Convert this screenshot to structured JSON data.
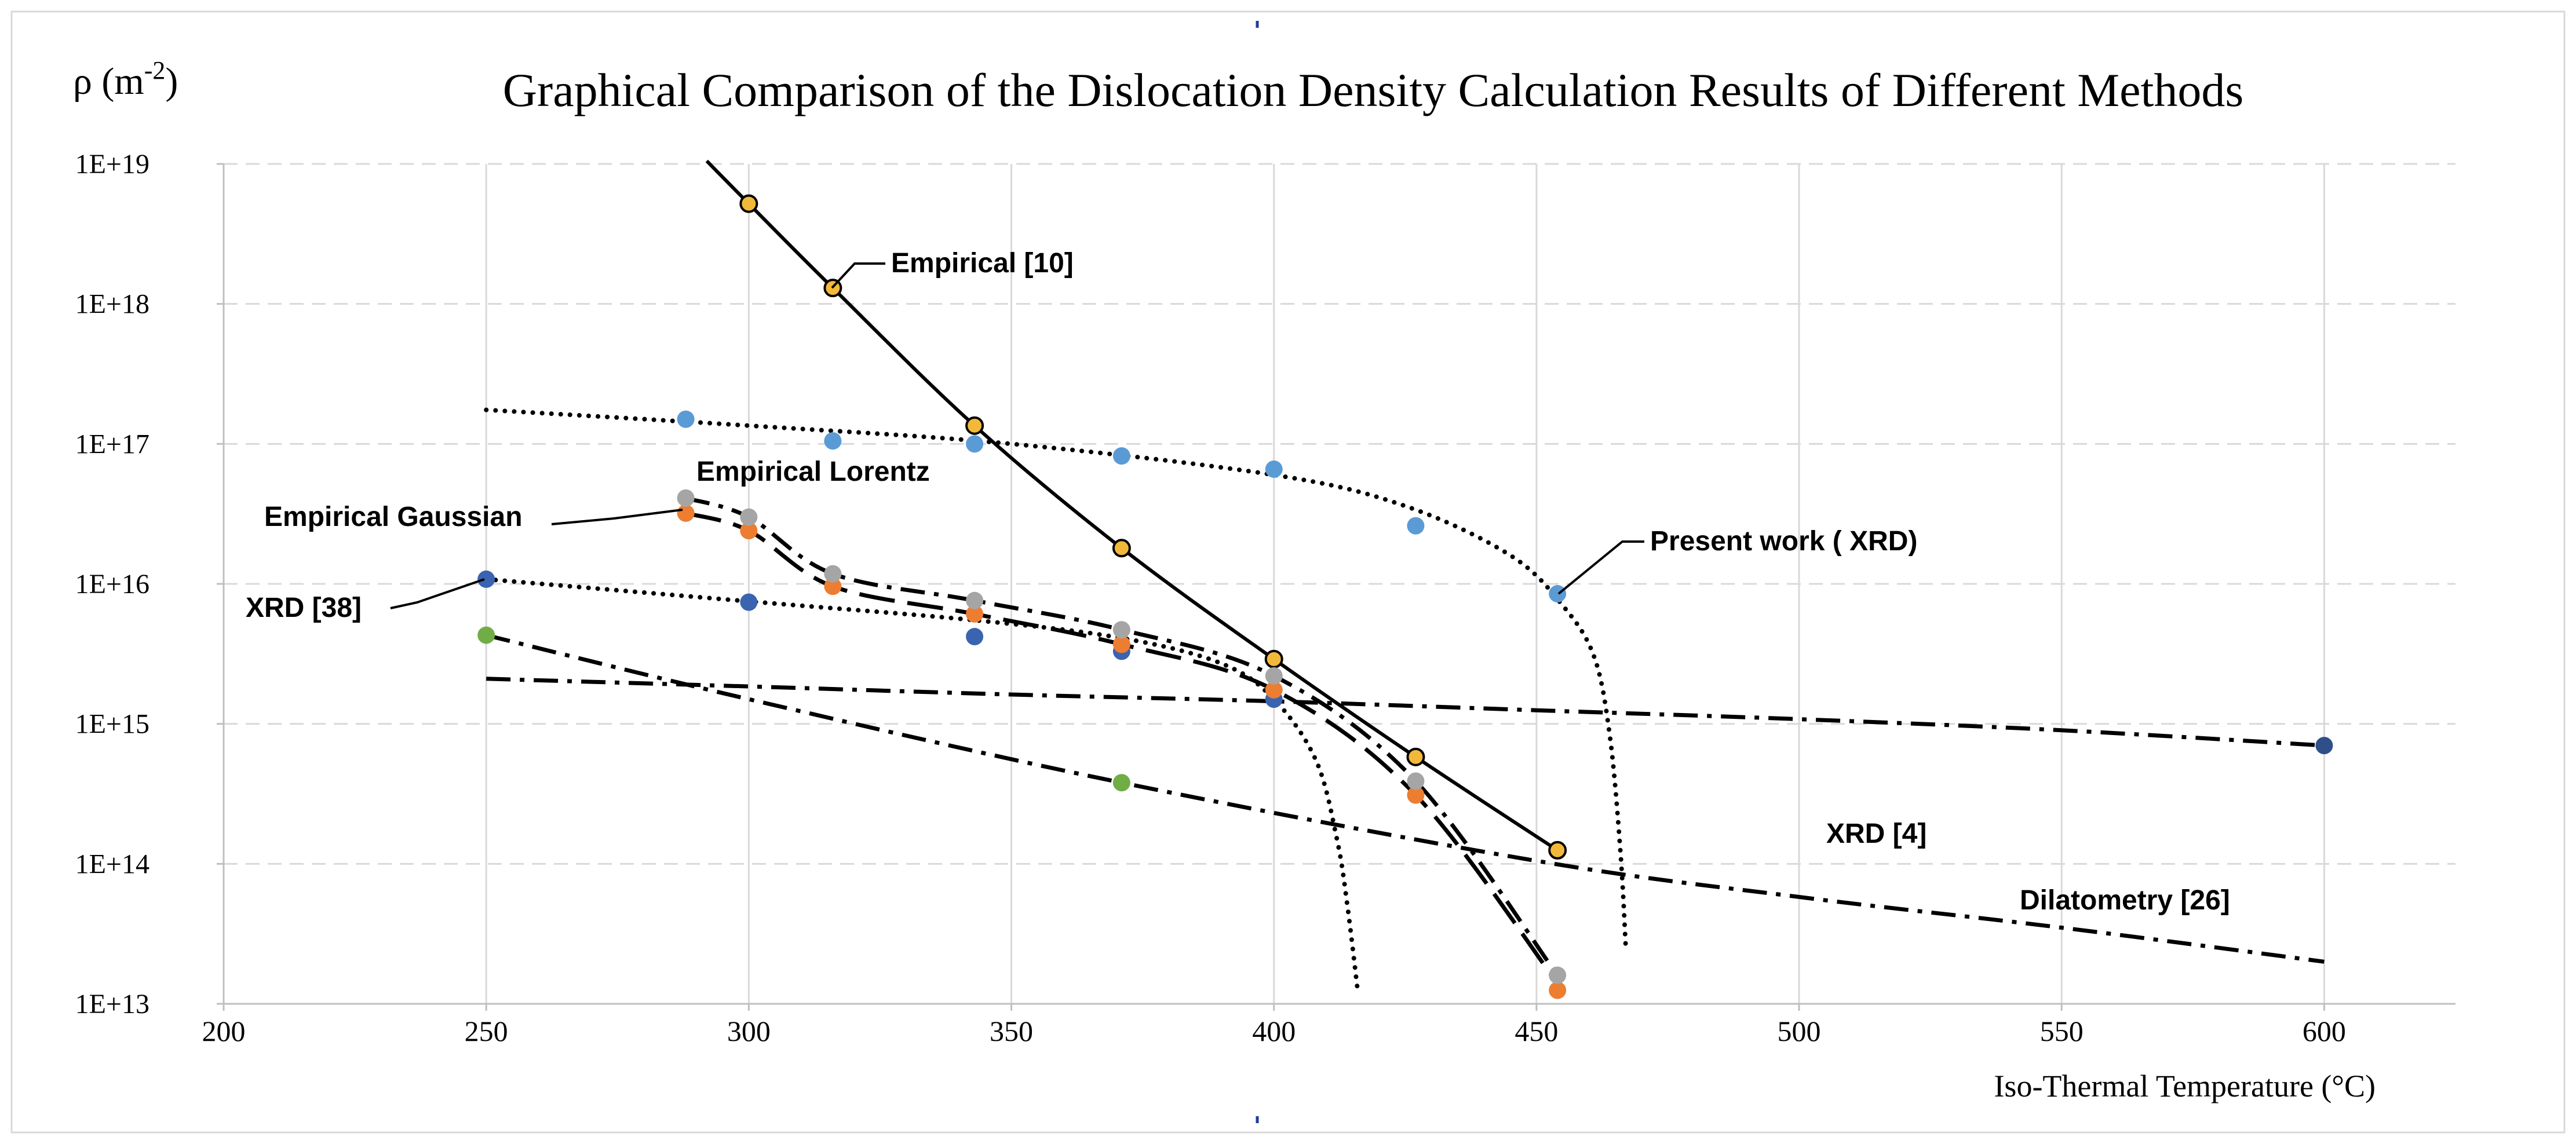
{
  "chart_data": {
    "type": "line",
    "title": "Graphical Comparison of the Dislocation Density Calculation Results of Different Methods",
    "ylabel": "ρ (m",
    "ylabel_sup": "-2",
    "ylabel_close": ")",
    "xlabel": "Iso-Thermal Temperature (°C)",
    "xlim": [
      200,
      625
    ],
    "x_ticks": [
      200,
      250,
      300,
      350,
      400,
      450,
      500,
      550,
      600
    ],
    "y_scale": "log",
    "ylim": [
      10000000000000.0,
      1e+19
    ],
    "y_ticks": [
      {
        "value": 10000000000000.0,
        "label": "1E+13"
      },
      {
        "value": 100000000000000.0,
        "label": "1E+14"
      },
      {
        "value": 1000000000000000.0,
        "label": "1E+15"
      },
      {
        "value": 1e+16,
        "label": "1E+16"
      },
      {
        "value": 1e+17,
        "label": "1E+17"
      },
      {
        "value": 1e+18,
        "label": "1E+18"
      },
      {
        "value": 1e+19,
        "label": "1E+19"
      }
    ],
    "grid": {
      "vertical": "solid",
      "horizontal": "dashed"
    },
    "colors": {
      "empirical10": "#f2b83a",
      "present": "#5b9bd5",
      "xrd38": "#3a63b0",
      "gaussian": "#ed7d31",
      "lorentz": "#a5a5a5",
      "xrd4": "#2e4f8a",
      "dilatometry": "#70ad47",
      "line": "#000000",
      "grid": "#d9d9d9",
      "axis": "#bfbfbf"
    },
    "series": [
      {
        "name": "Empirical [10]",
        "marker_color": "#f2b83a",
        "marker_edge": "#000000",
        "line_style": "solid",
        "points": [
          [
            300,
            5.2e+18
          ],
          [
            316,
            1.3e+18
          ],
          [
            343,
            1.35e+17
          ],
          [
            371,
            1.8e+16
          ],
          [
            400,
            2900000000000000.0
          ],
          [
            427,
            580000000000000.0
          ],
          [
            454,
            125000000000000.0
          ]
        ],
        "trend": [
          [
            292,
            1.05e+19
          ],
          [
            300,
            5.2e+18
          ],
          [
            316,
            1.3e+18
          ],
          [
            343,
            1.35e+17
          ],
          [
            371,
            1.8e+16
          ],
          [
            400,
            2900000000000000.0
          ],
          [
            427,
            580000000000000.0
          ],
          [
            454,
            125000000000000.0
          ]
        ]
      },
      {
        "name": "Present work ( XRD)",
        "marker_color": "#5b9bd5",
        "line_style": "dotted",
        "points": [
          [
            288,
            1.5e+17
          ],
          [
            316,
            1.05e+17
          ],
          [
            343,
            1e+17
          ],
          [
            371,
            8.2e+16
          ],
          [
            400,
            6.6e+16
          ],
          [
            427,
            2.6e+16
          ],
          [
            454,
            8500000000000000.0
          ]
        ],
        "trend": [
          [
            250,
            1.75e+17
          ],
          [
            300,
            1.35e+17
          ],
          [
            350,
            1e+17
          ],
          [
            400,
            6e+16
          ],
          [
            425,
            3.6e+16
          ],
          [
            445,
            1.6e+16
          ],
          [
            455,
            7000000000000000.0
          ],
          [
            461,
            3000000000000000.0
          ],
          [
            464,
            800000000000000.0
          ],
          [
            466,
            120000000000000.0
          ],
          [
            467,
            25000000000000.0
          ]
        ]
      },
      {
        "name": "XRD [38]",
        "marker_color": "#3a63b0",
        "line_style": "dotted",
        "points": [
          [
            250,
            1.08e+16
          ],
          [
            300,
            7400000000000000.0
          ],
          [
            343,
            4200000000000000.0
          ],
          [
            371,
            3300000000000000.0
          ],
          [
            400,
            1500000000000000.0
          ]
        ],
        "trend": [
          [
            250,
            1.08e+16
          ],
          [
            300,
            7500000000000000.0
          ],
          [
            343,
            5500000000000000.0
          ],
          [
            371,
            4100000000000000.0
          ],
          [
            390,
            2700000000000000.0
          ],
          [
            400,
            1500000000000000.0
          ],
          [
            408,
            550000000000000.0
          ],
          [
            412,
            150000000000000.0
          ],
          [
            414,
            50000000000000.0
          ],
          [
            416,
            12000000000000.0
          ]
        ]
      },
      {
        "name": "Empirical Gaussian",
        "marker_color": "#ed7d31",
        "line_style": "long-dash",
        "points": [
          [
            288,
            3.2e+16
          ],
          [
            300,
            2.4e+16
          ],
          [
            316,
            9600000000000000.0
          ],
          [
            343,
            6100000000000000.0
          ],
          [
            371,
            3700000000000000.0
          ],
          [
            400,
            1750000000000000.0
          ],
          [
            427,
            310000000000000.0
          ],
          [
            454,
            12500000000000.0
          ]
        ],
        "trend": [
          [
            288,
            3.2e+16
          ],
          [
            300,
            2.4e+16
          ],
          [
            316,
            9600000000000000.0
          ],
          [
            343,
            6100000000000000.0
          ],
          [
            371,
            3700000000000000.0
          ],
          [
            400,
            1750000000000000.0
          ],
          [
            427,
            310000000000000.0
          ],
          [
            454,
            14000000000000.0
          ]
        ]
      },
      {
        "name": "Empirical Lorentz",
        "marker_color": "#a5a5a5",
        "line_style": "dash-dot",
        "points": [
          [
            288,
            4.1e+16
          ],
          [
            300,
            3e+16
          ],
          [
            316,
            1.18e+16
          ],
          [
            343,
            7600000000000000.0
          ],
          [
            371,
            4700000000000000.0
          ],
          [
            400,
            2200000000000000.0
          ],
          [
            427,
            390000000000000.0
          ],
          [
            454,
            16000000000000.0
          ]
        ],
        "trend": [
          [
            288,
            4.1e+16
          ],
          [
            300,
            3e+16
          ],
          [
            316,
            1.18e+16
          ],
          [
            343,
            7600000000000000.0
          ],
          [
            371,
            4700000000000000.0
          ],
          [
            400,
            2200000000000000.0
          ],
          [
            427,
            390000000000000.0
          ],
          [
            454,
            16000000000000.0
          ]
        ]
      },
      {
        "name": "XRD [4]",
        "marker_color": "#2e4f8a",
        "line_style": "dash-dot",
        "points": [
          [
            600,
            700000000000000.0
          ]
        ],
        "trend": [
          [
            250,
            2100000000000000.0
          ],
          [
            300,
            1850000000000000.0
          ],
          [
            350,
            1620000000000000.0
          ],
          [
            400,
            1450000000000000.0
          ],
          [
            450,
            1250000000000000.0
          ],
          [
            500,
            1080000000000000.0
          ],
          [
            550,
            900000000000000.0
          ],
          [
            600,
            700000000000000.0
          ]
        ]
      },
      {
        "name": "Dilatometry [26]",
        "marker_color": "#70ad47",
        "line_style": "dash-dot",
        "points": [
          [
            250,
            4300000000000000.0
          ],
          [
            371,
            380000000000000.0
          ]
        ],
        "trend": [
          [
            250,
            4300000000000000.0
          ],
          [
            300,
            1500000000000000.0
          ],
          [
            371,
            380000000000000.0
          ],
          [
            450,
            105000000000000.0
          ],
          [
            500,
            58000000000000.0
          ],
          [
            550,
            35000000000000.0
          ],
          [
            600,
            20000000000000.0
          ]
        ]
      }
    ],
    "annotations": [
      {
        "text": "Empirical [10]",
        "series": 0
      },
      {
        "text": "Present work ( XRD)",
        "series": 1
      },
      {
        "text": "XRD [38]",
        "series": 2
      },
      {
        "text": "Empirical Gaussian",
        "series": 3
      },
      {
        "text": "Empirical Lorentz",
        "series": 4
      },
      {
        "text": "XRD [4]",
        "series": 5
      },
      {
        "text": "Dilatometry [26]",
        "series": 6
      }
    ]
  }
}
